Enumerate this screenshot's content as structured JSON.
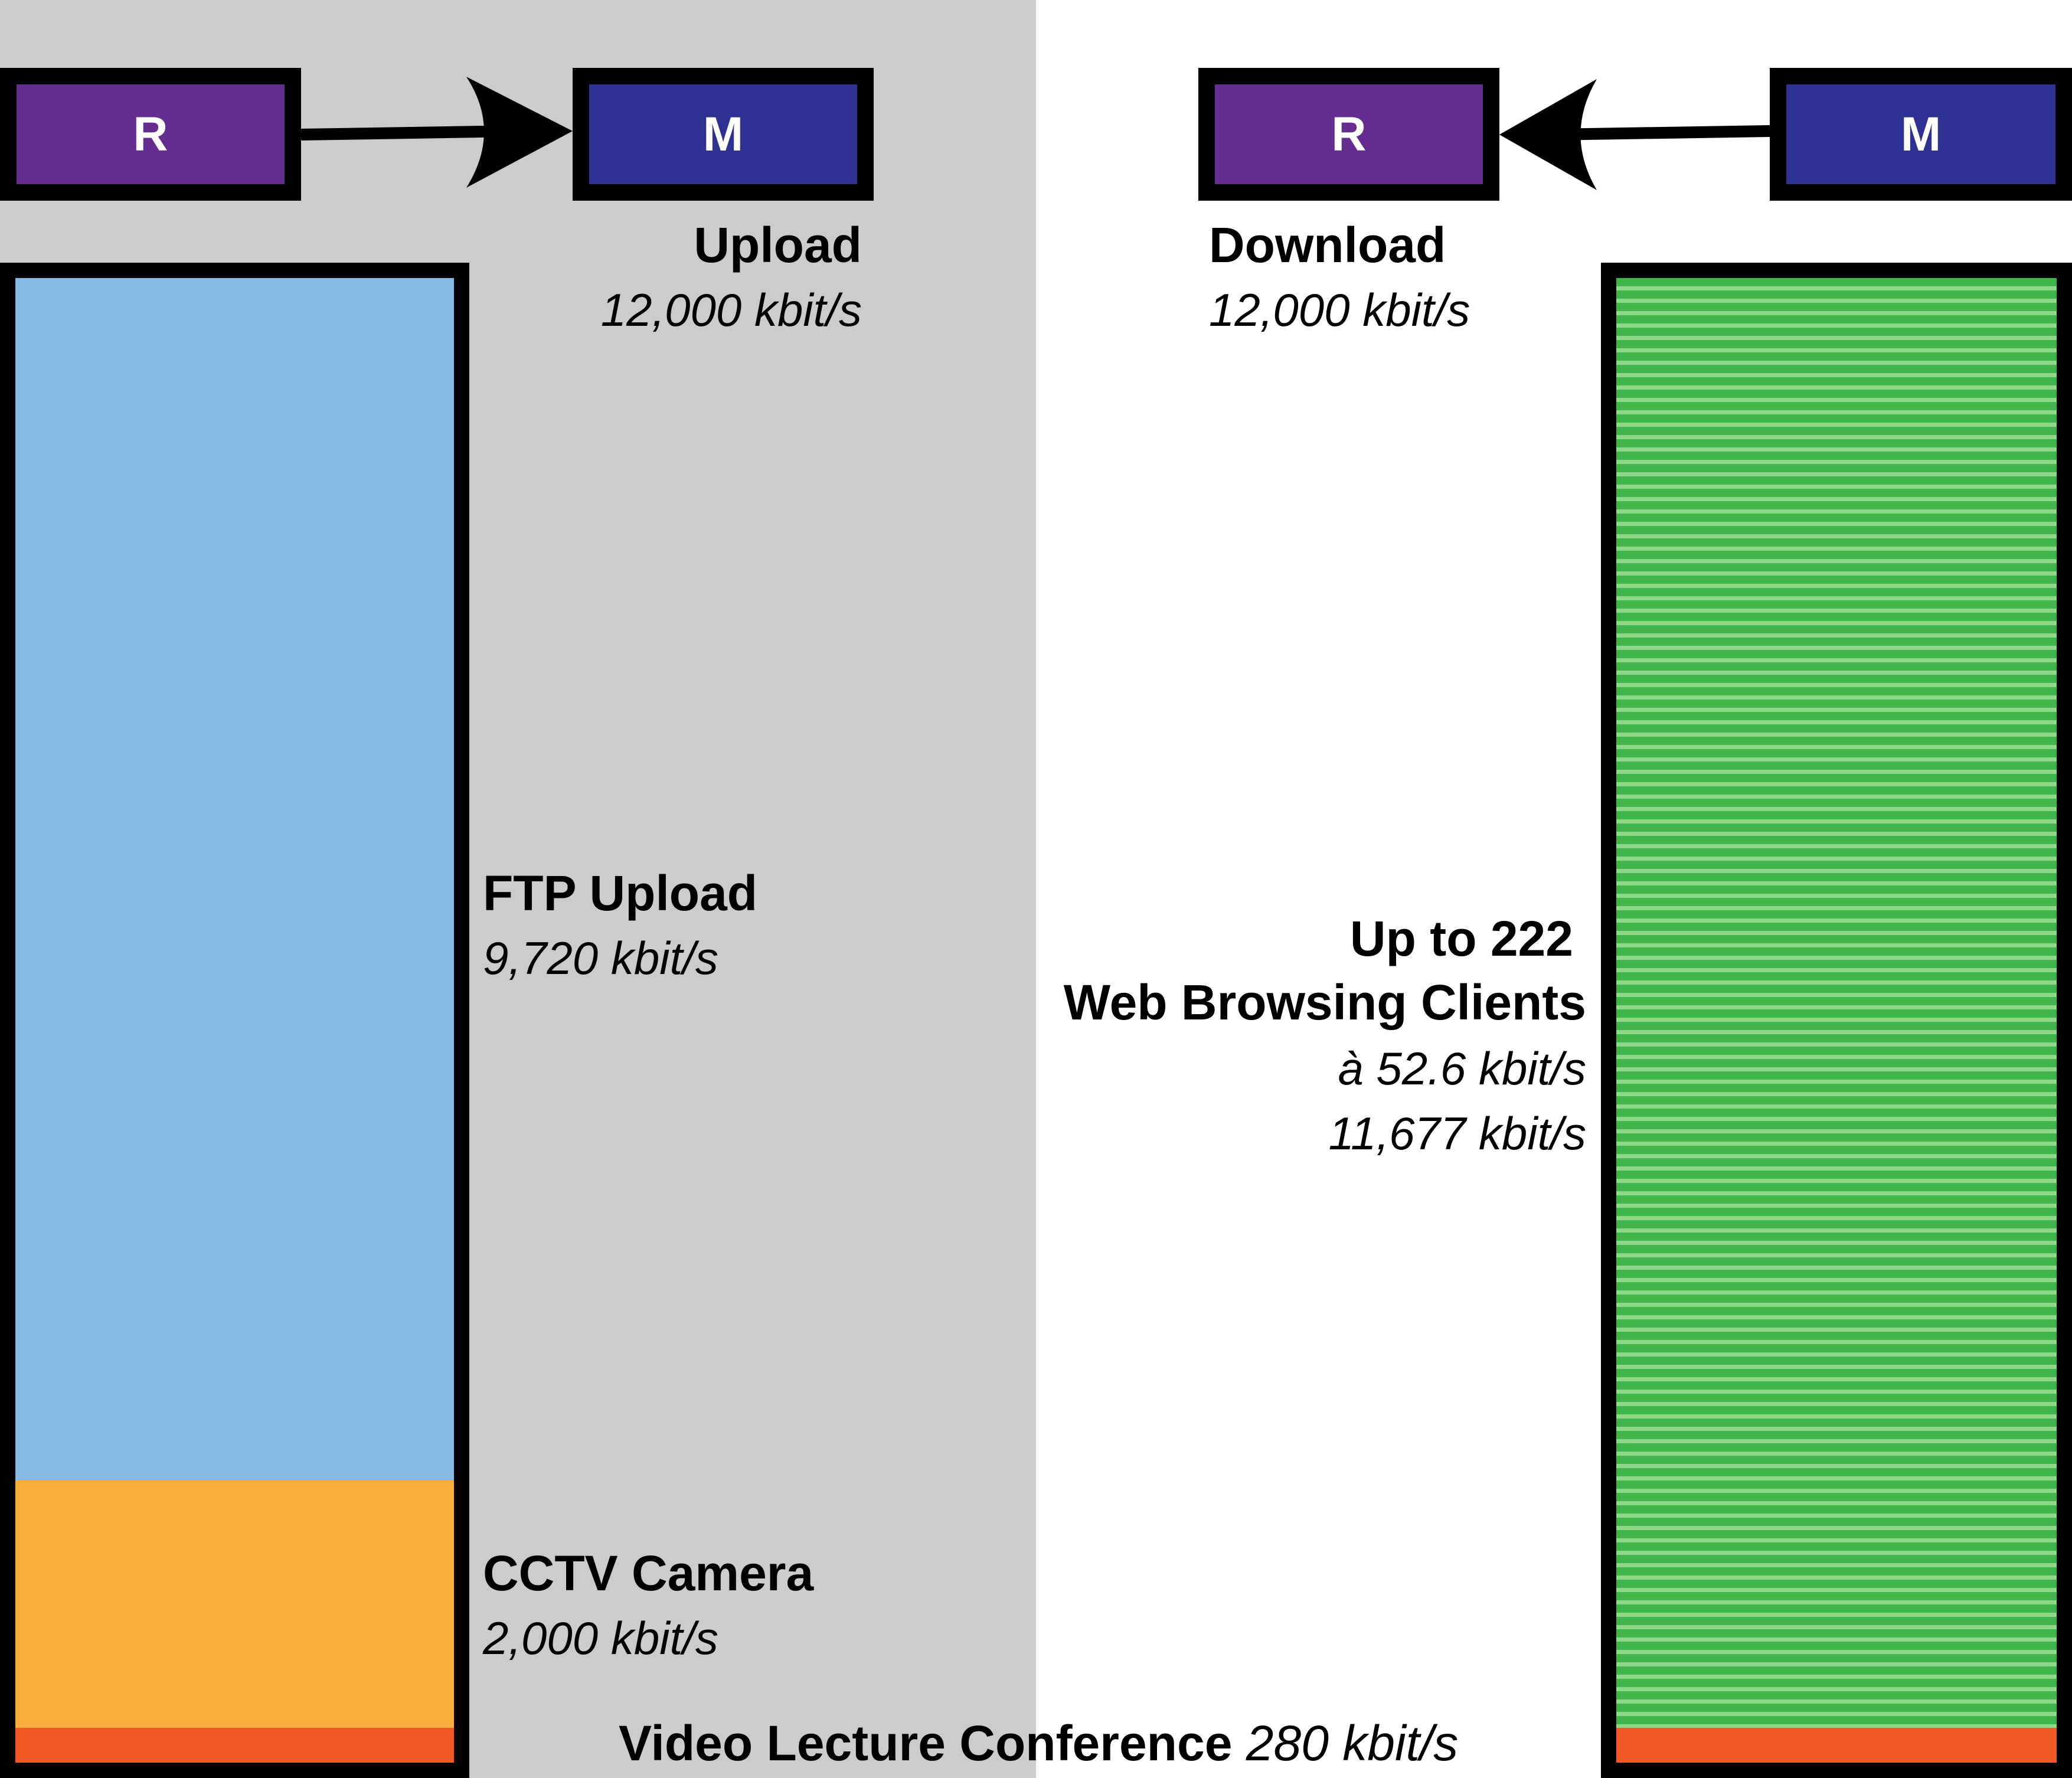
{
  "upload": {
    "router_label": "R",
    "modem_label": "M",
    "title": "Upload",
    "rate": "12,000 kbit/s",
    "segments": [
      {
        "name": "FTP Upload",
        "rate": "9,720 kbit/s",
        "kbit": 9720,
        "color": "#85bae2"
      },
      {
        "name": "CCTV Camera",
        "rate": "2,000 kbit/s",
        "kbit": 2000,
        "color": "#f9ae3c"
      },
      {
        "name": "Video Lecture Conference",
        "kbit": 280,
        "color": "#f15a24"
      }
    ]
  },
  "download": {
    "router_label": "R",
    "modem_label": "M",
    "title": "Download",
    "rate": "12,000 kbit/s",
    "web": {
      "line1": "Up to 222",
      "line2": "Web Browsing Clients",
      "per_client": "à 52.6 kbit/s",
      "total": "11,677 kbit/s",
      "kbit": 11677,
      "color": "#3fb54a"
    },
    "video_kbit": 280,
    "video_color": "#f15a24"
  },
  "shared_label": {
    "name": "Video Lecture Conference",
    "rate": "280 kbit/s"
  },
  "colors": {
    "router": "#662d91",
    "modem": "#2e3192",
    "upload_background": "#cccccc"
  }
}
